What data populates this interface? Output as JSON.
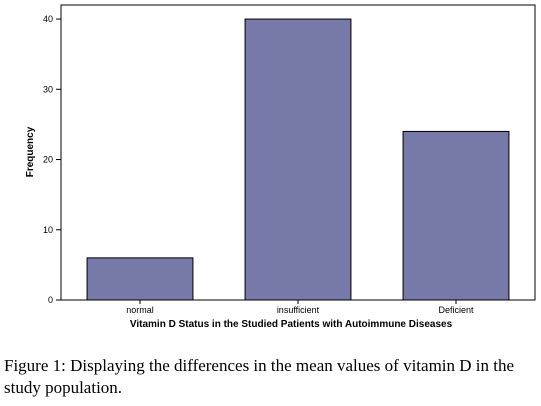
{
  "chart_data": {
    "type": "bar",
    "categories": [
      "normal",
      "insufficient",
      "Deficient"
    ],
    "values": [
      6,
      40,
      24
    ],
    "xlabel": "Vitamin D Status in the Studied Patients with Autoimmune Diseases",
    "ylabel": "Frequency",
    "ylim": [
      0,
      42
    ],
    "yticks": [
      0,
      10,
      20,
      30,
      40
    ],
    "grid": false,
    "legend": "none",
    "bar_color": "#7779a8",
    "bar_edge_color": "#000000"
  },
  "caption": {
    "label": "Figure 1:",
    "text": " Displaying the differences in the mean values of vitamin D in the study population."
  }
}
